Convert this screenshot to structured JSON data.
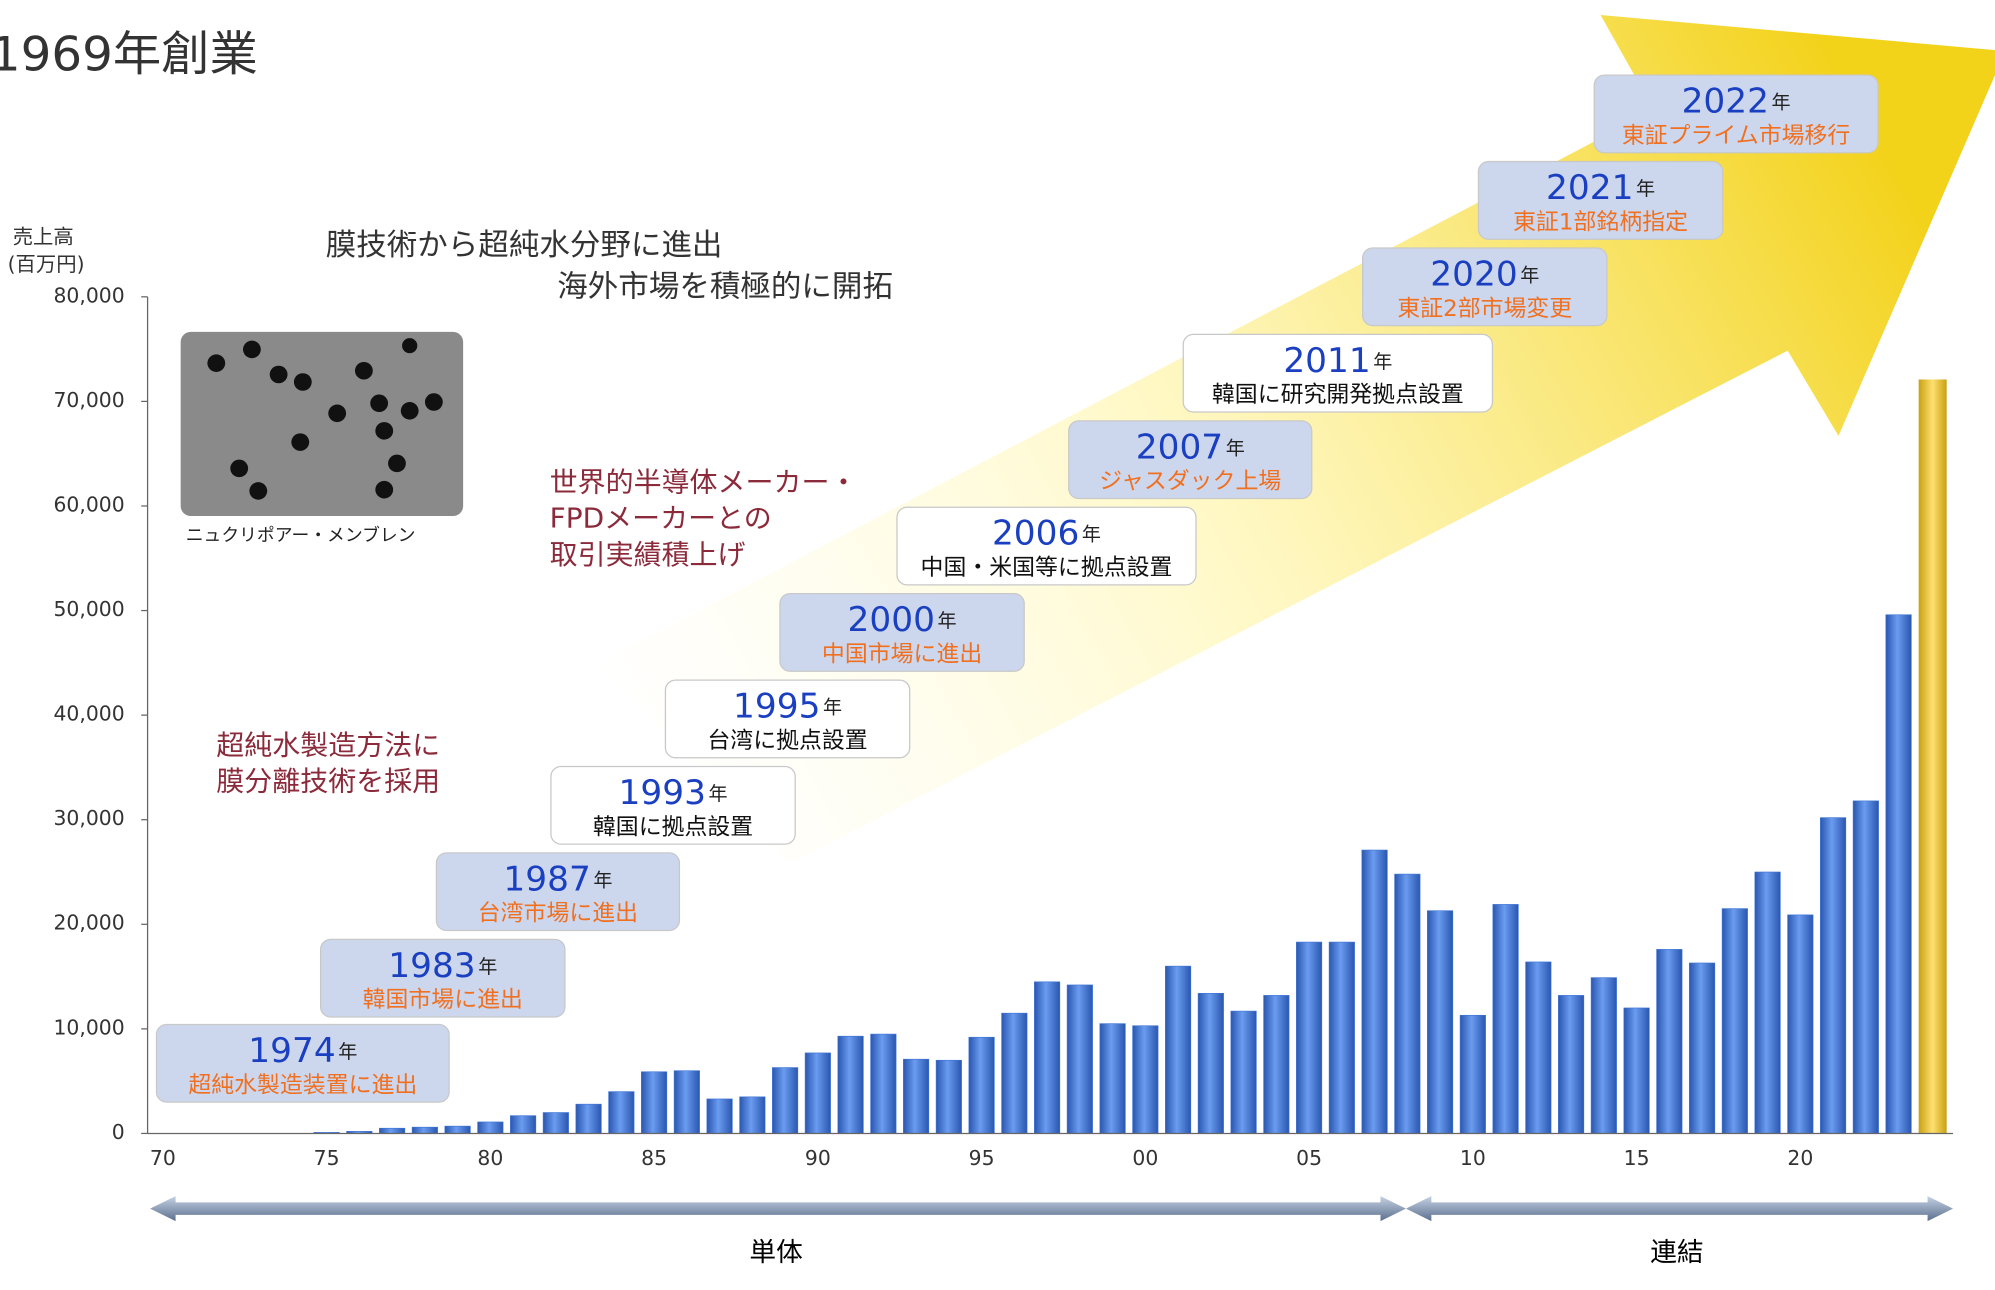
{
  "chart_data": {
    "type": "bar",
    "title": "1969年創業",
    "y_label": [
      "売上高",
      "(百万円)"
    ],
    "categories": [
      "70",
      null,
      null,
      null,
      null,
      "75",
      null,
      null,
      null,
      null,
      "80",
      null,
      null,
      null,
      null,
      "85",
      null,
      null,
      null,
      null,
      "90",
      null,
      null,
      null,
      null,
      "95",
      null,
      null,
      null,
      null,
      "00",
      null,
      null,
      null,
      null,
      "05",
      null,
      null,
      null,
      null,
      "10",
      null,
      null,
      null,
      null,
      "15",
      null,
      null,
      null,
      null,
      "20",
      null,
      null,
      null
    ],
    "values": [
      0,
      0,
      0,
      0,
      0,
      100,
      200,
      500,
      600,
      700,
      1100,
      1700,
      2000,
      2800,
      4000,
      5900,
      6000,
      3300,
      3500,
      6300,
      7700,
      9300,
      9500,
      7100,
      7000,
      9200,
      11500,
      14500,
      14200,
      10500,
      10300,
      16000,
      13400,
      11700,
      13200,
      18300,
      18300,
      27100,
      24800,
      21300,
      11300,
      21900,
      16400,
      13200,
      14900,
      12000,
      17600,
      16300,
      21500,
      25000,
      20900,
      30200,
      31800,
      49600
    ],
    "color": "#3d74d6",
    "ylim": [
      0,
      80000
    ],
    "yticks": [
      0,
      {
        "value": 10000,
        "label": "10,000"
      },
      {
        "value": 20000,
        "label": "20,000"
      },
      {
        "value": 30000,
        "label": "30,000"
      },
      {
        "value": 40000,
        "label": "40,000"
      },
      {
        "value": 50000,
        "label": "50,000"
      },
      {
        "value": 60000,
        "label": "60,000"
      },
      {
        "value": 70000,
        "label": "70,000"
      },
      {
        "value": 80000,
        "label": "80,000"
      }
    ],
    "headline": [
      "膜技術から超純水分野に進出",
      "海外市場を積極的に開拓"
    ],
    "notes": [
      [
        "世界的半導体メーカー・",
        "FPDメーカーとの",
        "取引実績積上げ"
      ],
      [
        "超純水製造方法に",
        "膜分離技術を採用"
      ]
    ],
    "photo_caption": "ニュクリポアー・メンブレン",
    "periods": [
      "単体",
      "連結"
    ],
    "milestones": [
      {
        "year": "1974",
        "unit": "年",
        "text": "超純水製造装置に進出",
        "box": "#ccd7ee",
        "text_color": "#f07020"
      },
      {
        "year": "1983",
        "unit": "年",
        "text": "韓国市場に進出",
        "box": "#ccd7ee",
        "text_color": "#f07020"
      },
      {
        "year": "1987",
        "unit": "年",
        "text": "台湾市場に進出",
        "box": "#ccd7ee",
        "text_color": "#f07020"
      },
      {
        "year": "1993",
        "unit": "年",
        "text": "韓国に拠点設置",
        "box": "#ffffff",
        "text_color": "#111111"
      },
      {
        "year": "1995",
        "unit": "年",
        "text": "台湾に拠点設置",
        "box": "#ffffff",
        "text_color": "#111111"
      },
      {
        "year": "2000",
        "unit": "年",
        "text": "中国市場に進出",
        "box": "#ccd7ee",
        "text_color": "#f07020"
      },
      {
        "year": "2006",
        "unit": "年",
        "text": "中国・米国等に拠点設置",
        "box": "#ffffff",
        "text_color": "#111111"
      },
      {
        "year": "2007",
        "unit": "年",
        "text": "ジャスダック上場",
        "box": "#ccd7ee",
        "text_color": "#f07020"
      },
      {
        "year": "2011",
        "unit": "年",
        "text": "韓国に研究開発拠点設置",
        "box": "#ffffff",
        "text_color": "#111111"
      },
      {
        "year": "2020",
        "unit": "年",
        "text": "東証2部市場変更",
        "box": "#ccd7ee",
        "text_color": "#f07020"
      },
      {
        "year": "2021",
        "unit": "年",
        "text": "東証1部銘柄指定",
        "box": "#ccd7ee",
        "text_color": "#f07020"
      },
      {
        "year": "2022",
        "unit": "年",
        "text": "東証プライム市場移行",
        "box": "#ccd7ee",
        "text_color": "#f07020"
      }
    ]
  }
}
